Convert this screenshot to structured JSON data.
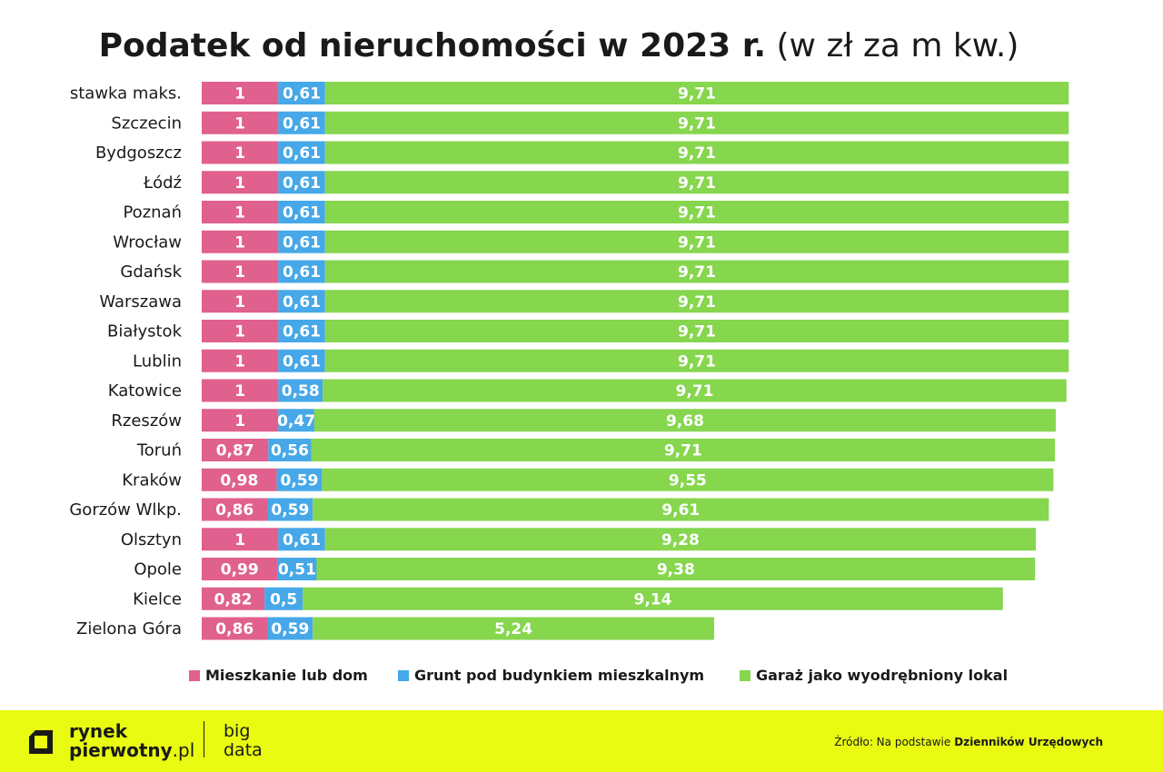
{
  "title": {
    "main": "Podatek od nieruchomości w 2023 r.",
    "unit": "(w zł za m kw.)"
  },
  "colors": {
    "series1": "#e0608e",
    "series2": "#46a8e8",
    "series3": "#86d64e",
    "footer_bg": "#e8fb10"
  },
  "chart_data": {
    "type": "bar",
    "orientation": "horizontal",
    "stacked": true,
    "title": "Podatek od nieruchomości w 2023 r. (w zł za m kw.)",
    "xlabel": "",
    "ylabel": "",
    "categories": [
      "stawka maks.",
      "Szczecin",
      "Bydgoszcz",
      "Łódź",
      "Poznań",
      "Wrocław",
      "Gdańsk",
      "Warszawa",
      "Białystok",
      "Lublin",
      "Katowice",
      "Rzeszów",
      "Toruń",
      "Kraków",
      "Gorzów Wlkp.",
      "Olsztyn",
      "Opole",
      "Kielce",
      "Zielona Góra"
    ],
    "series": [
      {
        "name": "Mieszkanie lub dom",
        "values": [
          1,
          1,
          1,
          1,
          1,
          1,
          1,
          1,
          1,
          1,
          1,
          1,
          0.87,
          0.98,
          0.86,
          1,
          0.99,
          0.82,
          0.86
        ],
        "labels": [
          "1",
          "1",
          "1",
          "1",
          "1",
          "1",
          "1",
          "1",
          "1",
          "1",
          "1",
          "1",
          "0,87",
          "0,98",
          "0,86",
          "1",
          "0,99",
          "0,82",
          "0,86"
        ]
      },
      {
        "name": "Grunt pod budynkiem mieszkalnym",
        "values": [
          0.61,
          0.61,
          0.61,
          0.61,
          0.61,
          0.61,
          0.61,
          0.61,
          0.61,
          0.61,
          0.58,
          0.47,
          0.56,
          0.59,
          0.59,
          0.61,
          0.51,
          0.5,
          0.59
        ],
        "labels": [
          "0,61",
          "0,61",
          "0,61",
          "0,61",
          "0,61",
          "0,61",
          "0,61",
          "0,61",
          "0,61",
          "0,61",
          "0,58",
          "0,47",
          "0,56",
          "0,59",
          "0,59",
          "0,61",
          "0,51",
          "0,5",
          "0,59"
        ]
      },
      {
        "name": "Garaż jako wyodrębniony lokal",
        "values": [
          9.71,
          9.71,
          9.71,
          9.71,
          9.71,
          9.71,
          9.71,
          9.71,
          9.71,
          9.71,
          9.71,
          9.68,
          9.71,
          9.55,
          9.61,
          9.28,
          9.38,
          9.14,
          5.24
        ],
        "labels": [
          "9,71",
          "9,71",
          "9,71",
          "9,71",
          "9,71",
          "9,71",
          "9,71",
          "9,71",
          "9,71",
          "9,71",
          "9,71",
          "9,68",
          "9,71",
          "9,55",
          "9,61",
          "9,28",
          "9,38",
          "9,14",
          "5,24"
        ]
      }
    ],
    "legend_position": "bottom",
    "grid": false
  },
  "footer": {
    "brand_line1": "rynek",
    "brand_line2_bold": "pierwotny",
    "brand_line2_light": ".pl",
    "bigdata_line1": "big",
    "bigdata_line2": "data",
    "source_prefix": "Źródło: Na podstawie",
    "source_bold": "Dzienników Urzędowych"
  }
}
